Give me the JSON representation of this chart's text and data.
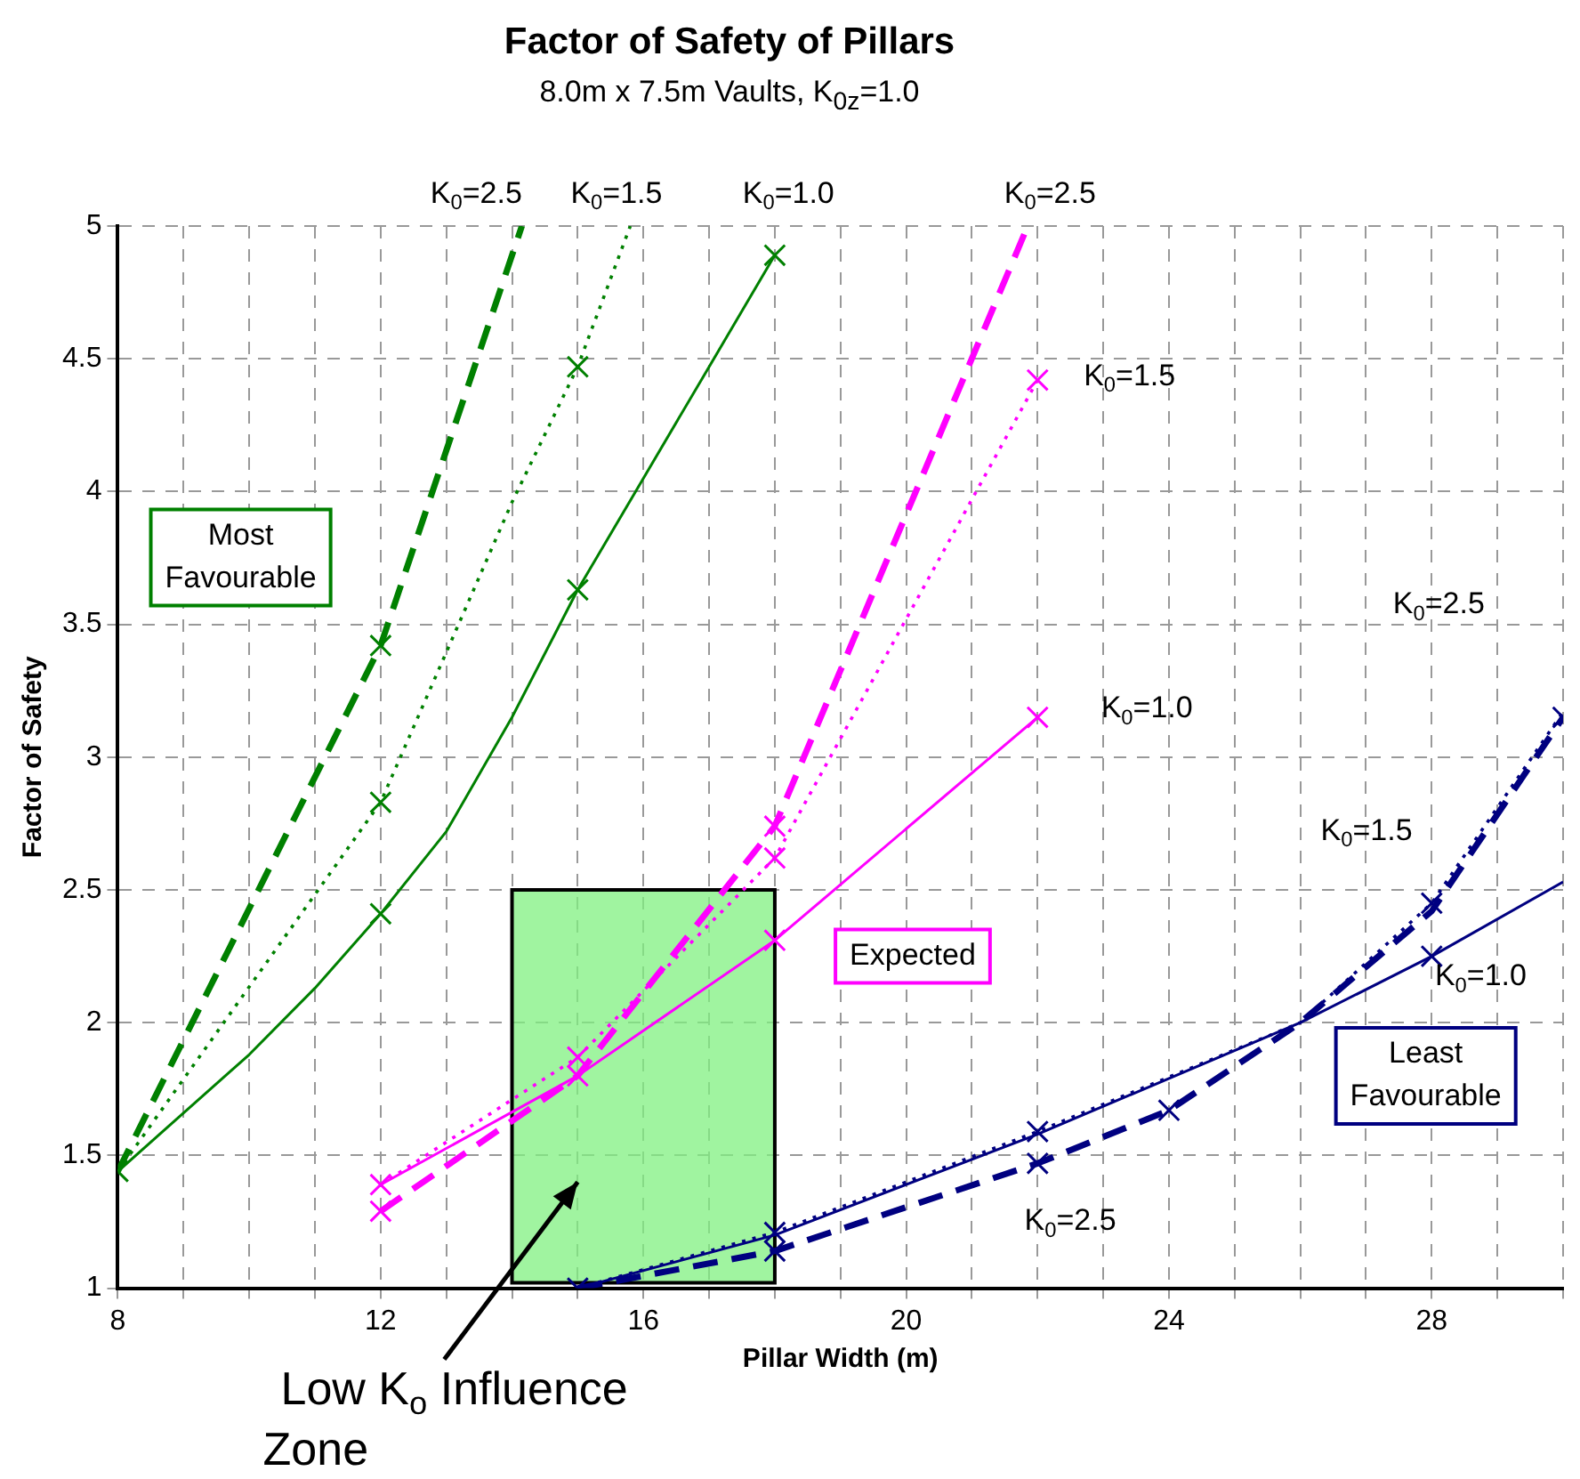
{
  "chart_data": {
    "type": "line",
    "title": "Factor of Safety of Pillars",
    "subtitle": "8.0m x 7.5m Vaults, K$_{0z}$=1.0",
    "xlabel": "Pillar Width (m)",
    "ylabel": "Factor of Safety",
    "xlim": [
      8,
      30
    ],
    "ylim": [
      1,
      5
    ],
    "xticks": [
      8,
      {
        "value": 9,
        "label": null
      },
      {
        "value": 10,
        "label": null
      },
      {
        "value": 11,
        "label": null
      },
      12,
      {
        "value": 13,
        "label": null
      },
      {
        "value": 14,
        "label": null
      },
      {
        "value": 15,
        "label": null
      },
      16,
      {
        "value": 17,
        "label": null
      },
      {
        "value": 18,
        "label": null
      },
      {
        "value": 19,
        "label": null
      },
      20,
      {
        "value": 21,
        "label": null
      },
      {
        "value": 22,
        "label": null
      },
      {
        "value": 23,
        "label": null
      },
      24,
      {
        "value": 25,
        "label": null
      },
      {
        "value": 26,
        "label": null
      },
      {
        "value": 27,
        "label": null
      },
      28,
      {
        "value": 29,
        "label": null
      },
      {
        "value": 30,
        "label": null
      }
    ],
    "yticks": [
      1,
      1.5,
      2,
      2.5,
      3,
      3.5,
      4,
      4.5,
      5
    ],
    "grid": true,
    "legend": false,
    "series": [
      {
        "type": "line",
        "color": "#008000",
        "line_style": "solid",
        "marker": "none",
        "x": [
          8,
          10,
          11,
          12,
          13,
          14,
          15,
          16,
          17,
          18
        ],
        "values": [
          1.44,
          1.88,
          2.13,
          2.41,
          2.72,
          3.15,
          3.63,
          4.05,
          4.47,
          4.89
        ]
      },
      {
        "type": "line",
        "color": "#008000",
        "line_style": "dotted",
        "marker": "none",
        "x": [
          8,
          12,
          14,
          15,
          15.8
        ],
        "values": [
          1.44,
          2.83,
          3.96,
          4.47,
          5.0
        ]
      },
      {
        "type": "line",
        "color": "#008000",
        "line_style": "dashed",
        "marker": "none",
        "x": [
          8,
          12,
          14.15
        ],
        "values": [
          1.44,
          3.42,
          5.0
        ]
      },
      {
        "type": "scatter",
        "color": "#008000",
        "marker": "cross",
        "x": [
          8,
          12,
          12,
          12,
          15,
          15,
          18
        ],
        "values": [
          1.44,
          2.41,
          2.83,
          3.42,
          3.63,
          4.47,
          4.89
        ]
      },
      {
        "type": "line",
        "color": "#ff00ff",
        "line_style": "solid",
        "marker": "none",
        "x": [
          12,
          15,
          18,
          22
        ],
        "values": [
          1.39,
          1.8,
          2.31,
          3.15
        ]
      },
      {
        "type": "line",
        "color": "#ff00ff",
        "line_style": "dotted",
        "marker": "none",
        "x": [
          12,
          15,
          18,
          22
        ],
        "values": [
          1.39,
          1.87,
          2.62,
          4.42
        ]
      },
      {
        "type": "line",
        "color": "#ff00ff",
        "line_style": "dashed",
        "marker": "none",
        "x": [
          12,
          15,
          18,
          21.85
        ],
        "values": [
          1.29,
          1.8,
          2.74,
          5.0
        ]
      },
      {
        "type": "scatter",
        "color": "#ff00ff",
        "marker": "cross",
        "x": [
          12,
          12,
          15,
          15,
          18,
          18,
          18,
          22,
          22
        ],
        "values": [
          1.39,
          1.29,
          1.87,
          1.8,
          2.74,
          2.62,
          2.31,
          4.42,
          3.15
        ]
      },
      {
        "type": "line",
        "color": "#000080",
        "line_style": "solid",
        "marker": "none",
        "x": [
          15,
          18,
          22,
          26,
          28,
          30
        ],
        "values": [
          1.0,
          1.2,
          1.58,
          2.0,
          2.25,
          2.53
        ]
      },
      {
        "type": "line",
        "color": "#000080",
        "line_style": "dotted",
        "marker": "none",
        "x": [
          15,
          18,
          22,
          26,
          28,
          30
        ],
        "values": [
          1.0,
          1.21,
          1.59,
          2.0,
          2.45,
          3.17
        ]
      },
      {
        "type": "line",
        "color": "#000080",
        "line_style": "dashed",
        "marker": "none",
        "x": [
          15,
          18,
          22,
          24,
          26,
          28,
          30
        ],
        "values": [
          1.0,
          1.14,
          1.47,
          1.67,
          2.0,
          2.42,
          3.15
        ]
      },
      {
        "type": "scatter",
        "color": "#000080",
        "marker": "cross",
        "x": [
          15,
          18,
          18,
          22,
          22,
          24,
          28,
          28,
          30
        ],
        "values": [
          1.0,
          1.21,
          1.14,
          1.59,
          1.47,
          1.67,
          2.45,
          2.25,
          3.15
        ]
      }
    ],
    "bands": [
      {
        "axis": "x",
        "from": 14,
        "to": 18,
        "label": "Low K$_{o}$ Influence Zone",
        "color": "#80f080"
      }
    ],
    "annotations": [
      "K$_{0}$=2.5",
      "K$_{0}$=1.5",
      "K$_{0}$=1.0",
      "K$_{0}$=2.5",
      "K$_{0}$=1.5",
      "K$_{0}$=1.0",
      "K$_{0}$=2.5",
      "K$_{0}$=1.5",
      "K$_{0}$=1.0",
      "K$_{0}$=2.5",
      "Most Favourable",
      "Expected",
      "Least Favourable"
    ]
  }
}
